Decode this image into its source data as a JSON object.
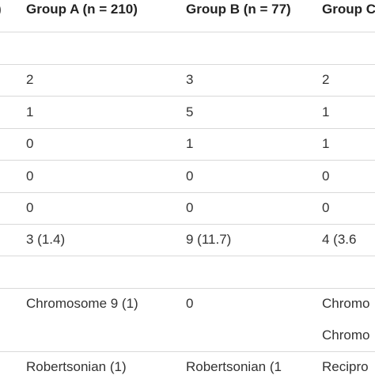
{
  "table": {
    "header": [
      ")",
      "Group A (n = 210)",
      "Group B (n = 77)",
      "Group C"
    ],
    "rows": [
      {},
      {
        "col_a": "2",
        "col_b": "3",
        "col_c": "2"
      },
      {
        "col_a": "1",
        "col_b": "5",
        "col_c": "1"
      },
      {
        "col_a": "0",
        "col_b": "1",
        "col_c": "1"
      },
      {
        "col_a": "0",
        "col_b": "0",
        "col_c": "0"
      },
      {
        "col_a": "0",
        "col_b": "0",
        "col_c": "0"
      },
      {
        "col_a": "3 (1.4)",
        "col_b": "9 (11.7)",
        "col_c": "4 (3.6"
      },
      {},
      {
        "col_a": "Chromosome 9 (1)",
        "col_b": "0",
        "col_c": [
          "Chromo",
          "Chromo"
        ]
      },
      {
        "col_a": "Robertsonian (1)",
        "col_b": "Robertsonian (1",
        "col_c": "Recipro"
      }
    ]
  }
}
